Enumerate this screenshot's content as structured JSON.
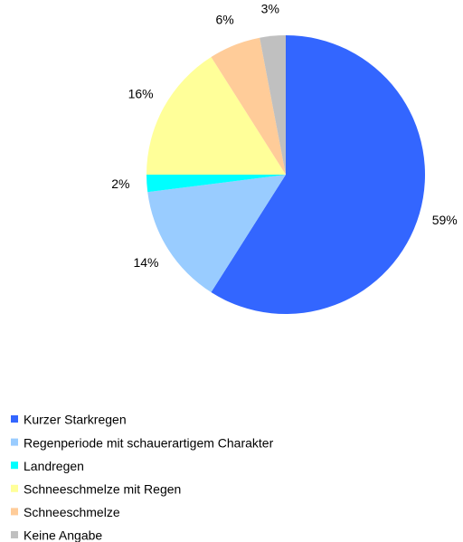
{
  "chart_data": {
    "type": "pie",
    "categories": [
      "Kurzer Starkregen",
      "Regenperiode mit schauerartigem Charakter",
      "Landregen",
      "Schneeschmelze mit Regen",
      "Schneeschmelze",
      "Keine Angabe"
    ],
    "values": [
      59,
      14,
      2,
      16,
      6,
      3
    ],
    "value_labels": [
      "59%",
      "14%",
      "2%",
      "16%",
      "6%",
      "3%"
    ],
    "colors": [
      "#3366ff",
      "#99ccff",
      "#00ffff",
      "#ffff99",
      "#ffcc99",
      "#c0c0c0"
    ],
    "legend": "bottom-left"
  }
}
